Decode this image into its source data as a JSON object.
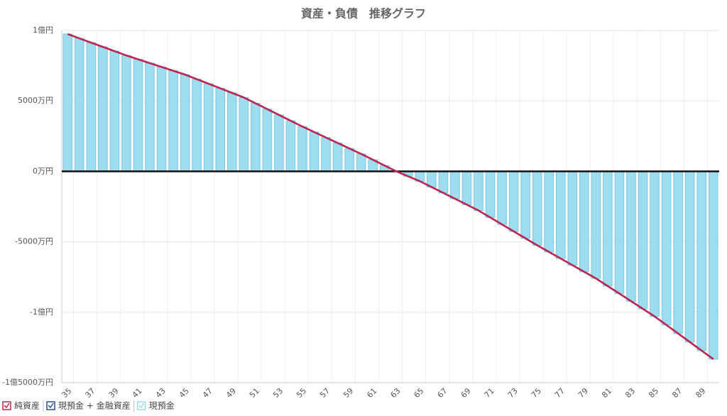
{
  "chart_data": {
    "type": "combo",
    "title": "資産・負債　推移グラフ",
    "categories": [
      "35",
      null,
      "37",
      null,
      "39",
      null,
      "41",
      null,
      "43",
      null,
      "45",
      null,
      "47",
      null,
      "49",
      null,
      "51",
      null,
      "53",
      null,
      "55",
      null,
      "57",
      null,
      "59",
      null,
      "61",
      null,
      "63",
      null,
      "65",
      null,
      "67",
      null,
      "69",
      null,
      "71",
      null,
      "73",
      null,
      "75",
      null,
      "77",
      null,
      "79",
      null,
      "81",
      null,
      "83",
      null,
      "85",
      null,
      "87",
      null,
      "89",
      null
    ],
    "series": [
      {
        "name": "純資産",
        "type": "line",
        "color": "#c2264f",
        "values": [
          9750,
          9446,
          9142,
          8838,
          8534,
          8230,
          7958,
          7686,
          7414,
          7142,
          6870,
          6546,
          6222,
          5898,
          5574,
          5250,
          4836,
          4422,
          4008,
          3594,
          3180,
          2792,
          2404,
          2016,
          1628,
          1240,
          827,
          413,
          0,
          -350,
          -700,
          -1116,
          -1532,
          -1948,
          -2364,
          -2780,
          -3274,
          -3768,
          -4262,
          -4756,
          -5250,
          -5720,
          -6190,
          -6660,
          -7130,
          -7600,
          -8140,
          -8680,
          -9220,
          -9760,
          -10300,
          -10906,
          -11512,
          -12118,
          -12724,
          -13330
        ]
      },
      {
        "name": "現預金 + 金融資産",
        "type": "line",
        "color": "#2f4f8f",
        "values": [
          9750,
          9446,
          9142,
          8838,
          8534,
          8230,
          7958,
          7686,
          7414,
          7142,
          6870,
          6546,
          6222,
          5898,
          5574,
          5250,
          4836,
          4422,
          4008,
          3594,
          3180,
          2792,
          2404,
          2016,
          1628,
          1240,
          827,
          413,
          0,
          -350,
          -700,
          -1116,
          -1532,
          -1948,
          -2364,
          -2780,
          -3274,
          -3768,
          -4262,
          -4756,
          -5250,
          -5720,
          -6190,
          -6660,
          -7130,
          -7600,
          -8140,
          -8680,
          -9220,
          -9760,
          -10300,
          -10906,
          -11512,
          -12118,
          -12724,
          -13330
        ]
      },
      {
        "name": "現預金",
        "type": "bar",
        "color": "#9edcf0",
        "values": [
          9750,
          9446,
          9142,
          8838,
          8534,
          8230,
          7958,
          7686,
          7414,
          7142,
          6870,
          6546,
          6222,
          5898,
          5574,
          5250,
          4836,
          4422,
          4008,
          3594,
          3180,
          2792,
          2404,
          2016,
          1628,
          1240,
          827,
          413,
          0,
          -350,
          -700,
          -1116,
          -1532,
          -1948,
          -2364,
          -2780,
          -3274,
          -3768,
          -4262,
          -4756,
          -5250,
          -5720,
          -6190,
          -6660,
          -7130,
          -7600,
          -8140,
          -8680,
          -9220,
          -9760,
          -10300,
          -10906,
          -11512,
          -12118,
          -12724,
          -13330
        ]
      }
    ],
    "ylim": [
      -15000,
      10000
    ],
    "yticks": [
      {
        "value": -15000,
        "label": "-1億5000万円"
      },
      {
        "value": -10000,
        "label": "-1億円"
      },
      {
        "value": -5000,
        "label": "-5000万円"
      },
      {
        "value": 0,
        "label": "0万円"
      },
      {
        "value": 5000,
        "label": "5000万円"
      },
      {
        "value": 10000,
        "label": "1億円"
      }
    ],
    "grid": true
  }
}
